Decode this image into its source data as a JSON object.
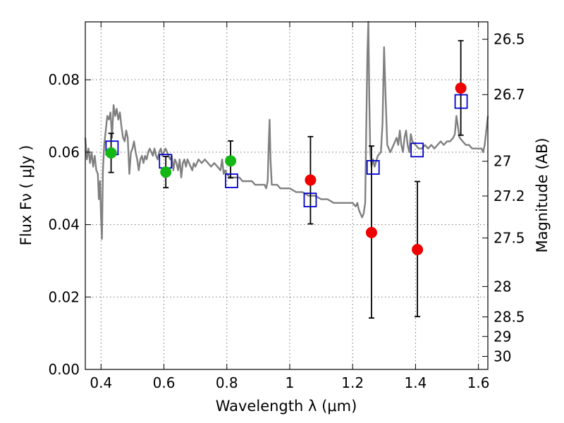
{
  "chart_data": {
    "type": "scatter",
    "title": "",
    "xlabel": "Wavelength  λ (μm)",
    "ylabel": "Flux  Fν  ( μJy )",
    "ylabel_right": "Magnitude (AB)",
    "xlim": [
      0.35,
      1.63
    ],
    "ylim": [
      0.0,
      0.096
    ],
    "grid": true,
    "x_ticks": [
      0.4,
      0.6,
      0.8,
      1.0,
      1.2,
      1.4,
      1.6
    ],
    "x_tick_labels": [
      "0.4",
      "0.6",
      "0.8",
      "1",
      "1.2",
      "1.4",
      "1.6"
    ],
    "y_ticks": [
      0.0,
      0.02,
      0.04,
      0.06,
      0.08
    ],
    "y_tick_labels": [
      "0.00",
      "0.02",
      "0.04",
      "0.06",
      "0.08"
    ],
    "right_ticks": [
      {
        "label": "26.5",
        "flux": 0.0912
      },
      {
        "label": "26.7",
        "flux": 0.0759
      },
      {
        "label": "27",
        "flux": 0.0575
      },
      {
        "label": "27.2",
        "flux": 0.0479
      },
      {
        "label": "27.5",
        "flux": 0.0363
      },
      {
        "label": "28",
        "flux": 0.0229
      },
      {
        "label": "28.5",
        "flux": 0.0145
      },
      {
        "label": "29",
        "flux": 0.0091
      },
      {
        "label": "30",
        "flux": 0.0036
      }
    ],
    "series": [
      {
        "kind": "line",
        "color": "#808080",
        "points": [
          [
            0.35,
            0.064
          ],
          [
            0.355,
            0.058
          ],
          [
            0.36,
            0.061
          ],
          [
            0.365,
            0.057
          ],
          [
            0.37,
            0.06
          ],
          [
            0.375,
            0.056
          ],
          [
            0.38,
            0.059
          ],
          [
            0.385,
            0.055
          ],
          [
            0.39,
            0.054
          ],
          [
            0.393,
            0.047
          ],
          [
            0.397,
            0.052
          ],
          [
            0.4,
            0.042
          ],
          [
            0.403,
            0.036
          ],
          [
            0.406,
            0.055
          ],
          [
            0.41,
            0.062
          ],
          [
            0.415,
            0.066
          ],
          [
            0.42,
            0.07
          ],
          [
            0.425,
            0.069
          ],
          [
            0.43,
            0.071
          ],
          [
            0.435,
            0.064
          ],
          [
            0.44,
            0.073
          ],
          [
            0.445,
            0.07
          ],
          [
            0.45,
            0.072
          ],
          [
            0.455,
            0.069
          ],
          [
            0.46,
            0.071
          ],
          [
            0.465,
            0.067
          ],
          [
            0.47,
            0.064
          ],
          [
            0.475,
            0.063
          ],
          [
            0.48,
            0.066
          ],
          [
            0.485,
            0.064
          ],
          [
            0.49,
            0.054
          ],
          [
            0.495,
            0.06
          ],
          [
            0.5,
            0.061
          ],
          [
            0.505,
            0.063
          ],
          [
            0.51,
            0.06
          ],
          [
            0.515,
            0.058
          ],
          [
            0.52,
            0.055
          ],
          [
            0.525,
            0.058
          ],
          [
            0.53,
            0.059
          ],
          [
            0.535,
            0.057
          ],
          [
            0.54,
            0.059
          ],
          [
            0.545,
            0.058
          ],
          [
            0.55,
            0.06
          ],
          [
            0.555,
            0.061
          ],
          [
            0.56,
            0.06
          ],
          [
            0.565,
            0.059
          ],
          [
            0.57,
            0.061
          ],
          [
            0.575,
            0.059
          ],
          [
            0.58,
            0.058
          ],
          [
            0.585,
            0.06
          ],
          [
            0.59,
            0.061
          ],
          [
            0.595,
            0.059
          ],
          [
            0.6,
            0.06
          ],
          [
            0.605,
            0.061
          ],
          [
            0.61,
            0.06
          ],
          [
            0.615,
            0.059
          ],
          [
            0.62,
            0.058
          ],
          [
            0.625,
            0.059
          ],
          [
            0.63,
            0.055
          ],
          [
            0.635,
            0.058
          ],
          [
            0.64,
            0.057
          ],
          [
            0.645,
            0.055
          ],
          [
            0.65,
            0.058
          ],
          [
            0.655,
            0.053
          ],
          [
            0.66,
            0.057
          ],
          [
            0.665,
            0.058
          ],
          [
            0.67,
            0.056
          ],
          [
            0.675,
            0.058
          ],
          [
            0.68,
            0.057
          ],
          [
            0.685,
            0.056
          ],
          [
            0.69,
            0.055
          ],
          [
            0.695,
            0.057
          ],
          [
            0.7,
            0.056
          ],
          [
            0.71,
            0.058
          ],
          [
            0.72,
            0.057
          ],
          [
            0.73,
            0.058
          ],
          [
            0.74,
            0.057
          ],
          [
            0.75,
            0.056
          ],
          [
            0.76,
            0.057
          ],
          [
            0.77,
            0.056
          ],
          [
            0.78,
            0.055
          ],
          [
            0.785,
            0.058
          ],
          [
            0.79,
            0.054
          ],
          [
            0.795,
            0.055
          ],
          [
            0.8,
            0.054
          ],
          [
            0.81,
            0.053
          ],
          [
            0.82,
            0.053
          ],
          [
            0.83,
            0.053
          ],
          [
            0.84,
            0.053
          ],
          [
            0.85,
            0.052
          ],
          [
            0.86,
            0.052
          ],
          [
            0.87,
            0.052
          ],
          [
            0.88,
            0.052
          ],
          [
            0.89,
            0.051
          ],
          [
            0.9,
            0.051
          ],
          [
            0.91,
            0.051
          ],
          [
            0.92,
            0.051
          ],
          [
            0.925,
            0.05
          ],
          [
            0.93,
            0.052
          ],
          [
            0.933,
            0.062
          ],
          [
            0.936,
            0.069
          ],
          [
            0.939,
            0.058
          ],
          [
            0.943,
            0.051
          ],
          [
            0.95,
            0.051
          ],
          [
            0.96,
            0.051
          ],
          [
            0.97,
            0.05
          ],
          [
            0.98,
            0.05
          ],
          [
            0.99,
            0.05
          ],
          [
            1.0,
            0.05
          ],
          [
            1.02,
            0.049
          ],
          [
            1.04,
            0.049
          ],
          [
            1.06,
            0.048
          ],
          [
            1.08,
            0.048
          ],
          [
            1.1,
            0.047
          ],
          [
            1.12,
            0.047
          ],
          [
            1.14,
            0.046
          ],
          [
            1.16,
            0.046
          ],
          [
            1.18,
            0.046
          ],
          [
            1.2,
            0.046
          ],
          [
            1.21,
            0.045
          ],
          [
            1.215,
            0.046
          ],
          [
            1.22,
            0.044
          ],
          [
            1.23,
            0.042
          ],
          [
            1.235,
            0.043
          ],
          [
            1.24,
            0.046
          ],
          [
            1.243,
            0.065
          ],
          [
            1.247,
            0.087
          ],
          [
            1.25,
            0.096
          ],
          [
            1.253,
            0.075
          ],
          [
            1.256,
            0.06
          ],
          [
            1.26,
            0.056
          ],
          [
            1.265,
            0.058
          ],
          [
            1.27,
            0.056
          ],
          [
            1.28,
            0.059
          ],
          [
            1.29,
            0.06
          ],
          [
            1.295,
            0.068
          ],
          [
            1.3,
            0.089
          ],
          [
            1.305,
            0.075
          ],
          [
            1.31,
            0.062
          ],
          [
            1.32,
            0.06
          ],
          [
            1.33,
            0.062
          ],
          [
            1.34,
            0.064
          ],
          [
            1.345,
            0.062
          ],
          [
            1.35,
            0.066
          ],
          [
            1.355,
            0.062
          ],
          [
            1.36,
            0.06
          ],
          [
            1.365,
            0.064
          ],
          [
            1.37,
            0.066
          ],
          [
            1.375,
            0.062
          ],
          [
            1.38,
            0.06
          ],
          [
            1.385,
            0.065
          ],
          [
            1.39,
            0.063
          ],
          [
            1.4,
            0.062
          ],
          [
            1.41,
            0.061
          ],
          [
            1.42,
            0.061
          ],
          [
            1.43,
            0.062
          ],
          [
            1.44,
            0.061
          ],
          [
            1.45,
            0.062
          ],
          [
            1.46,
            0.061
          ],
          [
            1.47,
            0.062
          ],
          [
            1.48,
            0.063
          ],
          [
            1.49,
            0.062
          ],
          [
            1.5,
            0.063
          ],
          [
            1.51,
            0.063
          ],
          [
            1.52,
            0.064
          ],
          [
            1.525,
            0.065
          ],
          [
            1.53,
            0.07
          ],
          [
            1.535,
            0.067
          ],
          [
            1.54,
            0.064
          ],
          [
            1.55,
            0.063
          ],
          [
            1.56,
            0.062
          ],
          [
            1.57,
            0.062
          ],
          [
            1.58,
            0.061
          ],
          [
            1.59,
            0.061
          ],
          [
            1.6,
            0.061
          ],
          [
            1.61,
            0.061
          ],
          [
            1.615,
            0.06
          ],
          [
            1.62,
            0.062
          ],
          [
            1.625,
            0.066
          ],
          [
            1.63,
            0.07
          ]
        ]
      },
      {
        "kind": "open_squares",
        "color": "#0000cc",
        "points": [
          [
            0.435,
            0.0612
          ],
          [
            0.605,
            0.0575
          ],
          [
            0.815,
            0.0521
          ],
          [
            1.065,
            0.0468
          ],
          [
            1.265,
            0.0558
          ],
          [
            1.405,
            0.0606
          ],
          [
            1.545,
            0.074
          ]
        ]
      },
      {
        "kind": "filled_circles",
        "color": "#14b814",
        "points": [
          {
            "x": 0.432,
            "y": 0.0598,
            "err": [
              0.0544,
              0.0652
            ]
          },
          {
            "x": 0.606,
            "y": 0.0545,
            "err": [
              0.0502,
              0.0588
            ]
          },
          {
            "x": 0.812,
            "y": 0.0576,
            "err": [
              0.0529,
              0.0631
            ]
          }
        ]
      },
      {
        "kind": "filled_circles",
        "color": "#ee0000",
        "points": [
          {
            "x": 1.066,
            "y": 0.0523,
            "err": [
              0.0402,
              0.0643
            ]
          },
          {
            "x": 1.26,
            "y": 0.0378,
            "err": [
              0.0142,
              0.0617
            ]
          },
          {
            "x": 1.406,
            "y": 0.0331,
            "err": [
              0.0146,
              0.0519
            ]
          },
          {
            "x": 1.544,
            "y": 0.0777,
            "err": [
              0.0647,
              0.0908
            ]
          }
        ]
      }
    ]
  }
}
